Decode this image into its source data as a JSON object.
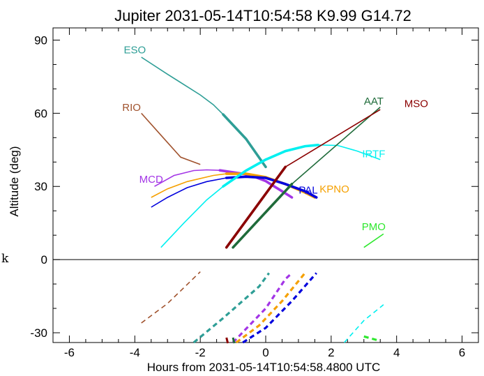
{
  "chart_data": {
    "type": "line",
    "title": "Jupiter 2031-05-14T10:54:58  K9.99  G14.72",
    "xlabel": "Hours from 2031-05-14T10:54:58.4800 UTC",
    "ylabel": "Altitude (deg)",
    "side_label": "k",
    "xlim": [
      -6.5,
      6.5
    ],
    "ylim": [
      -34,
      95
    ],
    "x_ticks": [
      -6,
      -4,
      -2,
      0,
      2,
      4,
      6
    ],
    "y_ticks": [
      -30,
      0,
      30,
      60,
      90
    ],
    "x_tick_labels": [
      "-6",
      "-4",
      "-2",
      "0",
      "2",
      "4",
      "6"
    ],
    "y_tick_labels": [
      "-30",
      "0",
      "30",
      "60",
      "90"
    ],
    "divider_y": 0,
    "series": [
      {
        "name": "ESO",
        "color": "#2e9e96",
        "label_x": -4,
        "label_y": 84.5,
        "thin": [
          [
            -3.8,
            83
          ],
          [
            -3,
            76
          ],
          [
            -2,
            67.5
          ],
          [
            -1.6,
            63.5
          ],
          [
            -1.3,
            59.5
          ]
        ],
        "thick": [
          [
            -1.3,
            59.5
          ],
          [
            -0.6,
            49.5
          ],
          [
            0,
            38
          ]
        ],
        "below": [
          [
            -2.2,
            -34
          ],
          [
            -1.3,
            -24
          ],
          [
            -0.2,
            -11
          ],
          [
            0.1,
            -5.5
          ]
        ]
      },
      {
        "name": "RIO",
        "color": "#a0522d",
        "label_x": -4.1,
        "label_y": 61,
        "thin": [
          [
            -3.8,
            60
          ],
          [
            -3.2,
            51
          ],
          [
            -2.6,
            42
          ],
          [
            -2,
            39
          ]
        ],
        "thick": [],
        "below": [
          [
            -3.8,
            -26
          ],
          [
            -3,
            -18
          ],
          [
            -2,
            -5
          ]
        ]
      },
      {
        "name": "MCD",
        "color": "#a335e6",
        "label_x": -3.5,
        "label_y": 31.5,
        "thin": [
          [
            -3.4,
            30
          ],
          [
            -2.8,
            34.5
          ],
          [
            -2.2,
            36.5
          ],
          [
            -1.8,
            36.8
          ],
          [
            -1.4,
            36.6
          ]
        ],
        "thick": [
          [
            -1.4,
            36.6
          ],
          [
            -0.5,
            34.8
          ],
          [
            0,
            32.2
          ],
          [
            0.5,
            28
          ],
          [
            0.8,
            25.5
          ]
        ],
        "below": [
          [
            -1,
            -34
          ],
          [
            -0.5,
            -27
          ],
          [
            0,
            -20
          ],
          [
            0.6,
            -8
          ],
          [
            0.8,
            -5.5
          ]
        ]
      },
      {
        "name": "KPNO",
        "color": "#f5a000",
        "label_x": 2.1,
        "label_y": 27.5,
        "thin": [
          [
            -3.5,
            25.5
          ],
          [
            -3,
            29
          ],
          [
            -2.4,
            32
          ],
          [
            -1.6,
            34.5
          ],
          [
            -1.2,
            35.2
          ]
        ],
        "thick": [
          [
            -1.2,
            35.2
          ],
          [
            -0.6,
            35.2
          ],
          [
            0,
            33.8
          ],
          [
            0.6,
            31
          ],
          [
            1.2,
            27.5
          ],
          [
            1.5,
            25.5
          ]
        ],
        "below": [
          [
            -0.9,
            -34
          ],
          [
            -0.2,
            -27
          ],
          [
            0.5,
            -17
          ],
          [
            1.2,
            -5.5
          ]
        ]
      },
      {
        "name": "PAL",
        "color": "#0000dd",
        "label_x": 1.3,
        "label_y": 27,
        "thin": [
          [
            -3.5,
            21.5
          ],
          [
            -3,
            25.5
          ],
          [
            -2.4,
            29.5
          ],
          [
            -1.8,
            32
          ],
          [
            -1.2,
            33.5
          ]
        ],
        "thick": [
          [
            -1.2,
            33.5
          ],
          [
            -0.6,
            34
          ],
          [
            0,
            33.5
          ],
          [
            0.6,
            31
          ],
          [
            1.2,
            28
          ],
          [
            1.55,
            25.5
          ]
        ],
        "below": [
          [
            -0.7,
            -34
          ],
          [
            0,
            -28
          ],
          [
            0.8,
            -17
          ],
          [
            1.55,
            -5.5
          ]
        ]
      },
      {
        "name": "IRTF",
        "color": "#00f0f0",
        "label_x": 3.3,
        "label_y": 42,
        "thin": [
          [
            -3.2,
            5
          ],
          [
            -2.5,
            15
          ],
          [
            -1.8,
            24.5
          ],
          [
            -1.3,
            30
          ]
        ],
        "thick": [
          [
            -1.3,
            30
          ],
          [
            -0.6,
            36.5
          ],
          [
            0,
            41
          ],
          [
            0.6,
            44.5
          ],
          [
            1.2,
            46.5
          ],
          [
            1.6,
            47
          ]
        ],
        "thin_after": [
          [
            1.6,
            47
          ],
          [
            2.2,
            46.8
          ],
          [
            2.8,
            44.5
          ],
          [
            3.2,
            42.5
          ],
          [
            3.5,
            41
          ]
        ],
        "below": [
          [
            2.4,
            -34
          ],
          [
            3,
            -25
          ],
          [
            3.6,
            -18.5
          ]
        ]
      },
      {
        "name": "AAT",
        "color": "#1f6b3a",
        "label_x": 3.3,
        "label_y": 63.5,
        "thin": [
          [
            0.8,
            31
          ],
          [
            3.5,
            62.5
          ]
        ],
        "thick": [
          [
            -1.0,
            5
          ],
          [
            0.8,
            31
          ]
        ],
        "below": [
          [
            -1.0,
            -32
          ]
        ]
      },
      {
        "name": "MSO",
        "color": "#8b0000",
        "label_x": 4.6,
        "label_y": 62.5,
        "thin": [
          [
            0.6,
            38
          ],
          [
            3.5,
            61.5
          ]
        ],
        "thick": [
          [
            -1.2,
            5
          ],
          [
            0.6,
            38
          ]
        ],
        "below": [
          [
            -1.2,
            -32
          ]
        ]
      },
      {
        "name": "PMO",
        "color": "#2ee82e",
        "label_x": 3.3,
        "label_y": 12,
        "thin": [
          [
            3.0,
            5
          ],
          [
            3.6,
            10.5
          ]
        ],
        "thick": [],
        "below": [
          [
            3.0,
            -31.5
          ],
          [
            3.4,
            -33
          ]
        ]
      }
    ]
  }
}
